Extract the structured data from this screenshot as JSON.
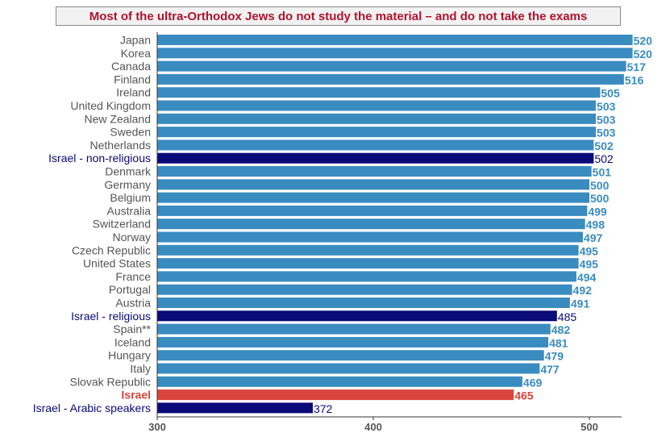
{
  "chart_data": {
    "type": "bar",
    "orientation": "horizontal",
    "title": "Most of the ultra-Orthodox Jews do not study the material – and do not take the exams",
    "categories": [
      "Japan",
      "Korea",
      "Canada",
      "Finland",
      "Ireland",
      "United Kingdom",
      "New Zealand",
      "Sweden",
      "Netherlands",
      "Israel - non-religious",
      "Denmark",
      "Germany",
      "Belgium",
      "Australia",
      "Switzerland",
      "Norway",
      "Czech Republic",
      "United States",
      "France",
      "Portugal",
      "Austria",
      "Israel - religious",
      "Spain**",
      "Iceland",
      "Hungary",
      "Italy",
      "Slovak Republic",
      "Israel",
      "Israel - Arabic speakers"
    ],
    "values": [
      520,
      520,
      517,
      516,
      505,
      503,
      503,
      503,
      502,
      502,
      501,
      500,
      500,
      499,
      498,
      497,
      495,
      495,
      494,
      492,
      491,
      485,
      482,
      481,
      479,
      477,
      469,
      465,
      372
    ],
    "highlight": {
      "Israel - non-religious": "dark-blue",
      "Israel - religious": "dark-blue",
      "Israel - Arabic speakers": "dark-blue",
      "Israel": "red"
    },
    "xlim": [
      300,
      515
    ],
    "xticks": [
      300,
      400,
      500
    ],
    "xlabel": "",
    "ylabel": "",
    "grid": false,
    "colors": {
      "default": "#3a8cc0",
      "dark-blue": "#0a0a78",
      "red": "#d9443a",
      "title": "#b3122e",
      "default_label": "#555555"
    }
  }
}
